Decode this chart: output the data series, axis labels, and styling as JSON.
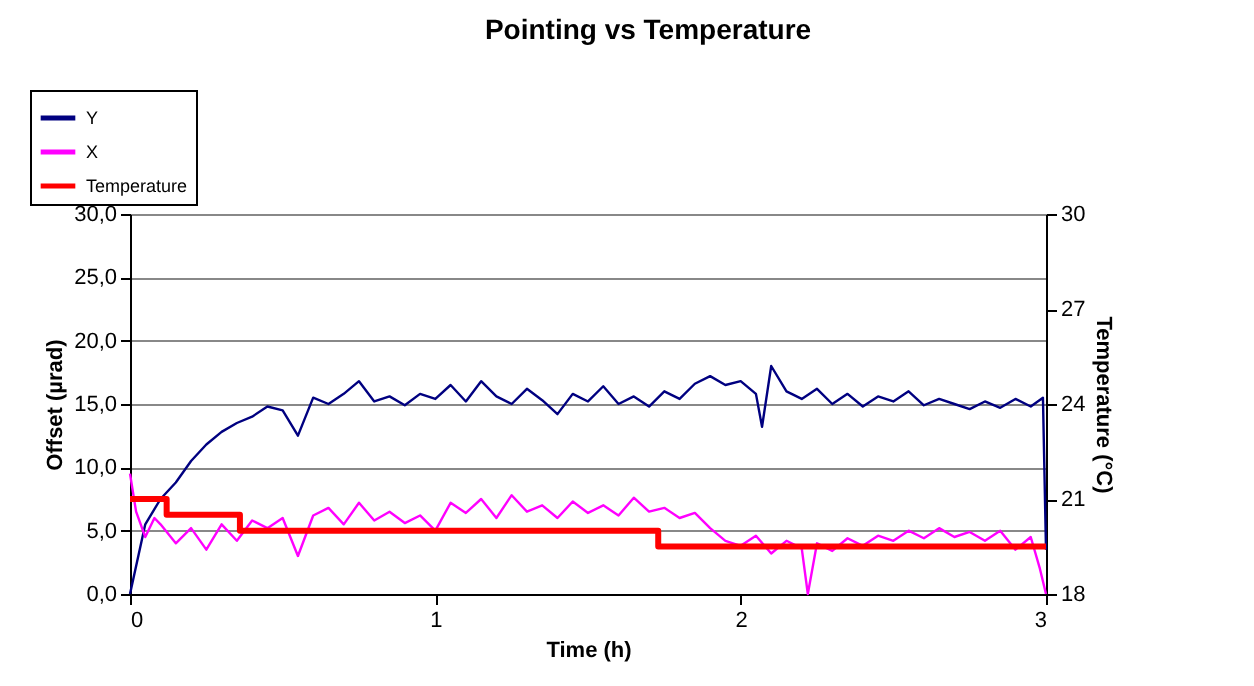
{
  "chart_data": {
    "type": "line",
    "title": "Pointing vs Temperature",
    "xlabel": "Time (h)",
    "ylabel": "Offset (µrad)",
    "y2label": "Temperature (°C)",
    "xlim": [
      0,
      3
    ],
    "xticks": [
      0,
      1,
      2,
      3
    ],
    "ylim": [
      0,
      30
    ],
    "yticks": [
      {
        "value": 0,
        "label": "0,0"
      },
      {
        "value": 5,
        "label": "5,0"
      },
      {
        "value": 10,
        "label": "10,0"
      },
      {
        "value": 15,
        "label": "15,0"
      },
      {
        "value": 20,
        "label": "20,0"
      },
      {
        "value": 25,
        "label": "25,0"
      },
      {
        "value": 30,
        "label": "30,0"
      }
    ],
    "y2lim": [
      18,
      30
    ],
    "y2ticks": [
      18,
      21,
      24,
      27,
      30
    ],
    "grid": "y",
    "legend": "top left",
    "marker": "none",
    "line_style": "solid",
    "series": [
      {
        "name": "Y",
        "color": "#000080",
        "x": [
          0,
          0.05,
          0.1,
          0.15,
          0.2,
          0.25,
          0.3,
          0.35,
          0.4,
          0.45,
          0.5,
          0.55,
          0.6,
          0.65,
          0.7,
          0.75,
          0.8,
          0.85,
          0.9,
          0.95,
          1.0,
          1.05,
          1.1,
          1.15,
          1.2,
          1.25,
          1.3,
          1.35,
          1.4,
          1.45,
          1.5,
          1.55,
          1.6,
          1.65,
          1.7,
          1.75,
          1.8,
          1.85,
          1.9,
          1.95,
          2.0,
          2.05,
          2.07,
          2.1,
          2.15,
          2.2,
          2.25,
          2.3,
          2.35,
          2.4,
          2.45,
          2.5,
          2.55,
          2.6,
          2.65,
          2.7,
          2.75,
          2.8,
          2.85,
          2.9,
          2.95,
          2.99,
          3.0
        ],
        "values": [
          0,
          5.5,
          7.5,
          8.8,
          10.5,
          11.8,
          12.8,
          13.5,
          14.0,
          14.8,
          14.5,
          12.5,
          15.5,
          15.0,
          15.8,
          16.8,
          15.2,
          15.6,
          14.9,
          15.8,
          15.4,
          16.5,
          15.2,
          16.8,
          15.6,
          15.0,
          16.2,
          15.3,
          14.2,
          15.8,
          15.2,
          16.4,
          15.0,
          15.6,
          14.8,
          16.0,
          15.4,
          16.6,
          17.2,
          16.5,
          16.8,
          15.8,
          13.2,
          18.0,
          16.0,
          15.4,
          16.2,
          15.0,
          15.8,
          14.8,
          15.6,
          15.2,
          16.0,
          14.9,
          15.4,
          15.0,
          14.6,
          15.2,
          14.7,
          15.4,
          14.8,
          15.5,
          3.5
        ]
      },
      {
        "name": "X",
        "color": "#ff00ff",
        "x": [
          0,
          0.02,
          0.05,
          0.08,
          0.1,
          0.15,
          0.2,
          0.25,
          0.3,
          0.35,
          0.4,
          0.45,
          0.5,
          0.55,
          0.6,
          0.65,
          0.7,
          0.75,
          0.8,
          0.85,
          0.9,
          0.95,
          1.0,
          1.05,
          1.1,
          1.15,
          1.2,
          1.25,
          1.3,
          1.35,
          1.4,
          1.45,
          1.5,
          1.55,
          1.6,
          1.65,
          1.7,
          1.75,
          1.8,
          1.85,
          1.9,
          1.95,
          2.0,
          2.05,
          2.1,
          2.15,
          2.2,
          2.22,
          2.25,
          2.3,
          2.35,
          2.4,
          2.45,
          2.5,
          2.55,
          2.6,
          2.65,
          2.7,
          2.75,
          2.8,
          2.85,
          2.9,
          2.95,
          2.98,
          3.0
        ],
        "values": [
          9.5,
          6.5,
          4.5,
          6.0,
          5.5,
          4.0,
          5.2,
          3.5,
          5.5,
          4.2,
          5.8,
          5.2,
          6.0,
          3.0,
          6.2,
          6.8,
          5.5,
          7.2,
          5.8,
          6.5,
          5.6,
          6.2,
          5.0,
          7.2,
          6.4,
          7.5,
          6.0,
          7.8,
          6.5,
          7.0,
          6.0,
          7.3,
          6.4,
          7.0,
          6.2,
          7.6,
          6.5,
          6.8,
          6.0,
          6.4,
          5.2,
          4.2,
          3.8,
          4.6,
          3.2,
          4.2,
          3.6,
          0.0,
          4.0,
          3.4,
          4.4,
          3.8,
          4.6,
          4.2,
          5.0,
          4.4,
          5.2,
          4.5,
          4.9,
          4.2,
          5.0,
          3.5,
          4.5,
          2.0,
          0.0
        ]
      },
      {
        "name": "Temperature",
        "color": "#ff0000",
        "type": "step",
        "axis": "y2",
        "x": [
          0,
          0.12,
          0.36,
          1.73,
          3.0
        ],
        "values": [
          21.0,
          20.5,
          20.0,
          19.5,
          19.5
        ]
      }
    ]
  }
}
